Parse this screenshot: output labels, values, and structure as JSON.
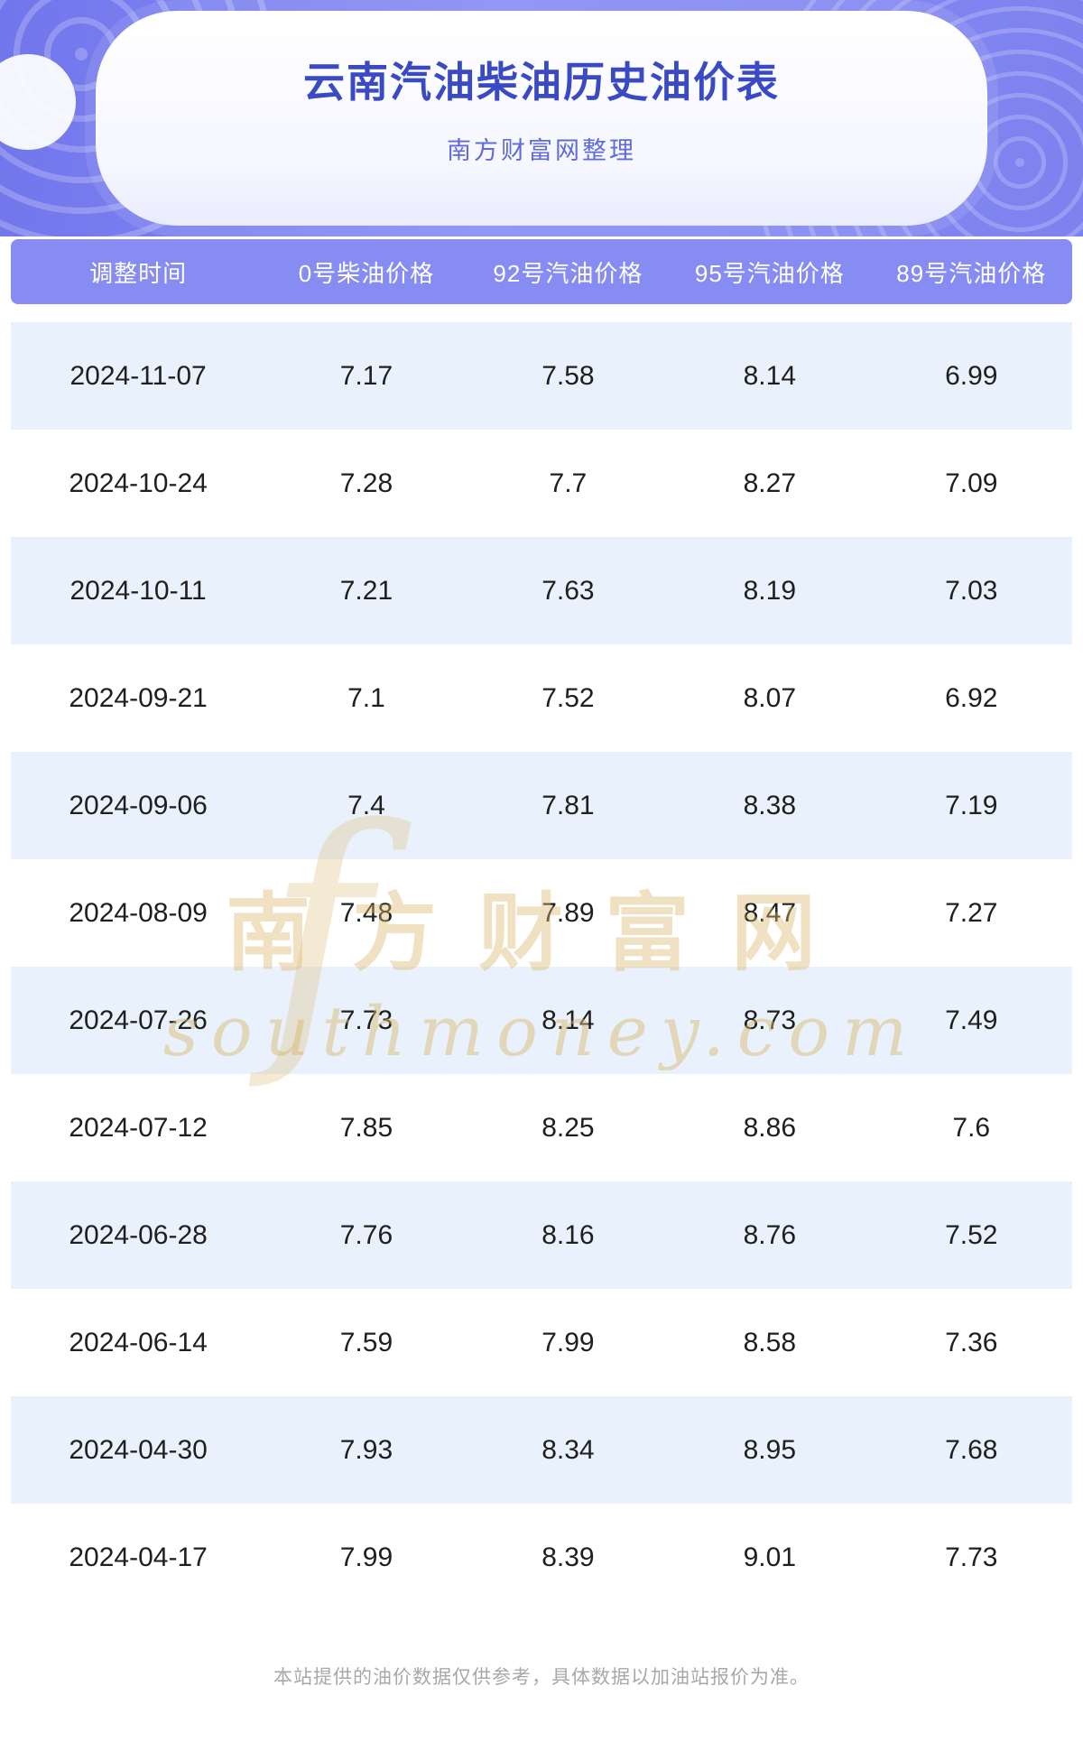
{
  "chart_data": {
    "type": "table",
    "title": "云南汽油柴油历史油价表",
    "subtitle": "南方财富网整理",
    "columns": [
      "调整时间",
      "0号柴油价格",
      "92号汽油价格",
      "95号汽油价格",
      "89号汽油价格"
    ],
    "rows": [
      [
        "2024-11-07",
        "7.17",
        "7.58",
        "8.14",
        "6.99"
      ],
      [
        "2024-10-24",
        "7.28",
        "7.7",
        "8.27",
        "7.09"
      ],
      [
        "2024-10-11",
        "7.21",
        "7.63",
        "8.19",
        "7.03"
      ],
      [
        "2024-09-21",
        "7.1",
        "7.52",
        "8.07",
        "6.92"
      ],
      [
        "2024-09-06",
        "7.4",
        "7.81",
        "8.38",
        "7.19"
      ],
      [
        "2024-08-09",
        "7.48",
        "7.89",
        "8.47",
        "7.27"
      ],
      [
        "2024-07-26",
        "7.73",
        "8.14",
        "8.73",
        "7.49"
      ],
      [
        "2024-07-12",
        "7.85",
        "8.25",
        "8.86",
        "7.6"
      ],
      [
        "2024-06-28",
        "7.76",
        "8.16",
        "8.76",
        "7.52"
      ],
      [
        "2024-06-14",
        "7.59",
        "7.99",
        "8.58",
        "7.36"
      ],
      [
        "2024-04-30",
        "7.93",
        "8.34",
        "8.95",
        "7.68"
      ],
      [
        "2024-04-17",
        "7.99",
        "8.39",
        "9.01",
        "7.73"
      ]
    ]
  },
  "watermark": {
    "glyph": "f",
    "line1": "南方财富网",
    "line2": "southmoney.com"
  },
  "footer": {
    "note": "本站提供的油价数据仅供参考，具体数据以加油站报价为准。"
  },
  "colors": {
    "hero_purple": "#7A7FEF",
    "title_blue": "#3A49C4",
    "subtitle_purple": "#5F6BD8",
    "table_header_bg": "#878CF2",
    "row_alt_bg": "#E9F2FC",
    "watermark_gold": "#D8B56E"
  }
}
